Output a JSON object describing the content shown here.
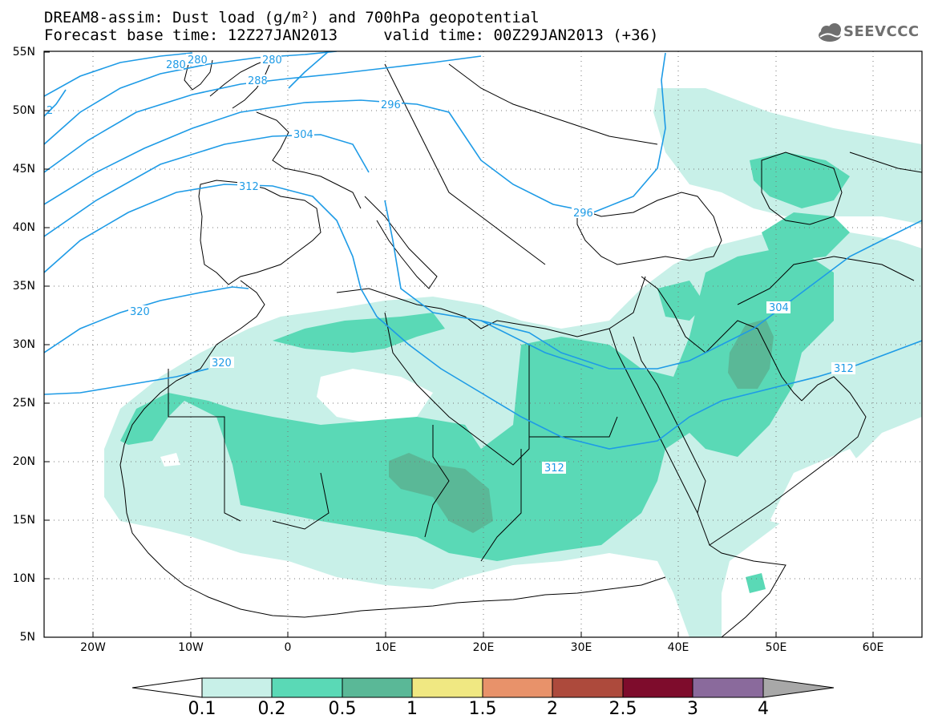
{
  "title": {
    "line1": "DREAM8-assim: Dust load (g/m²) and 700hPa geopotential",
    "line2": "Forecast base time: 12Z27JAN2013     valid time: 00Z29JAN2013 (+36)"
  },
  "logo": {
    "text": "SEEVCCC",
    "icon": "cloud-icon"
  },
  "axes": {
    "lat_labels": [
      "55N",
      "50N",
      "45N",
      "40N",
      "35N",
      "30N",
      "25N",
      "20N",
      "15N",
      "10N",
      "5N"
    ],
    "lon_labels": [
      "20W",
      "10W",
      "0",
      "10E",
      "20E",
      "30E",
      "40E",
      "50E",
      "60E"
    ],
    "lat_range": [
      5,
      55
    ],
    "lon_range": [
      -25,
      65
    ]
  },
  "contours": {
    "color": "#1e9be6",
    "labels": [
      "280",
      "280",
      "288",
      "280",
      "296",
      "304",
      "312",
      "296",
      "304",
      "312",
      "320",
      "320",
      "312",
      "2"
    ]
  },
  "colorbar": {
    "levels": [
      "0.1",
      "0.2",
      "0.5",
      "1",
      "1.5",
      "2",
      "2.5",
      "3",
      "4"
    ],
    "colors": [
      "#c8f0e8",
      "#5ad9b6",
      "#5ab897",
      "#f0e882",
      "#e8926a",
      "#ad4a3c",
      "#7e0c2c",
      "#8a6a9c"
    ]
  },
  "chart_data": {
    "type": "map",
    "title": "DREAM8-assim: Dust load (g/m²) and 700hPa geopotential",
    "variable": "Dust load (g/m²)",
    "overlay": "700hPa geopotential",
    "contour_levels_labeled": [
      280,
      288,
      296,
      304,
      312,
      320
    ],
    "shading_levels": [
      0.1,
      0.2,
      0.5,
      1,
      1.5,
      2,
      2.5,
      3,
      4
    ],
    "xlim": [
      -25,
      65
    ],
    "ylim": [
      5,
      55
    ]
  }
}
